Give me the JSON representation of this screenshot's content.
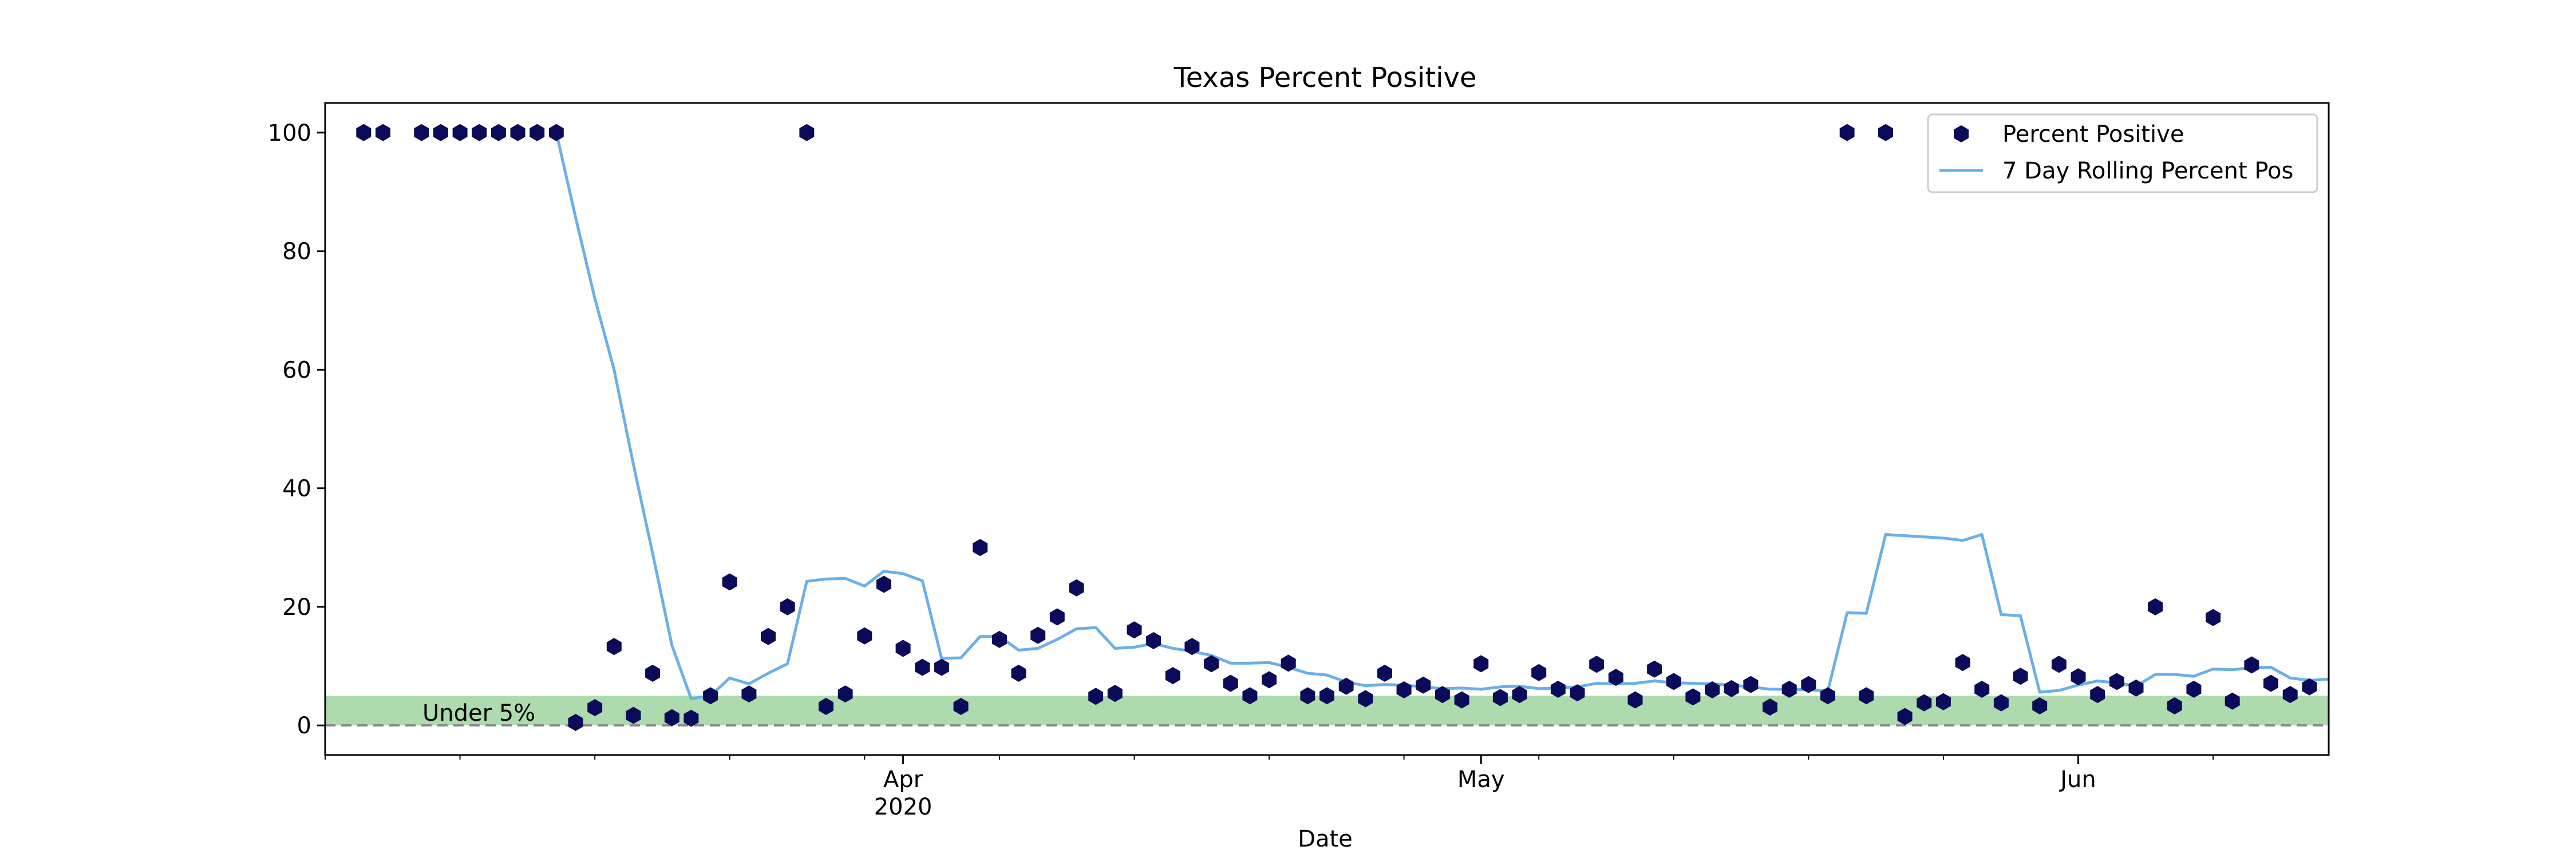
{
  "chart_data": {
    "type": "scatter",
    "title": "Texas Percent Positive",
    "xlabel": "Date",
    "ylabel": "",
    "ylim": [
      -5,
      105
    ],
    "xlim": [
      "2020-03-02",
      "2020-06-14"
    ],
    "x_ticks": [
      {
        "date": "2020-04-01",
        "label": "Apr",
        "sublabel": "2020"
      },
      {
        "date": "2020-05-01",
        "label": "May",
        "sublabel": ""
      },
      {
        "date": "2020-06-01",
        "label": "Jun",
        "sublabel": ""
      }
    ],
    "x_minor_ticks": [
      "2020-03-02",
      "2020-03-09",
      "2020-03-16",
      "2020-03-23",
      "2020-03-30",
      "2020-04-06",
      "2020-04-13",
      "2020-04-20",
      "2020-04-27",
      "2020-05-04",
      "2020-05-11",
      "2020-05-18",
      "2020-05-25",
      "2020-06-01",
      "2020-06-08"
    ],
    "y_ticks": [
      0,
      20,
      40,
      60,
      80,
      100
    ],
    "grid": false,
    "legend_position": "top-right",
    "band": {
      "from": 0,
      "to": 5,
      "label": "Under 5%",
      "color": "#5cb85c"
    },
    "reference_line": {
      "y": 0,
      "style": "dashed",
      "color": "#888888"
    },
    "series": [
      {
        "name": "Percent Positive",
        "kind": "scatter",
        "marker": "hexagon",
        "color": "#0b0b5a",
        "points": [
          [
            "2020-03-04",
            100
          ],
          [
            "2020-03-05",
            100
          ],
          [
            "2020-03-07",
            100
          ],
          [
            "2020-03-08",
            100
          ],
          [
            "2020-03-09",
            100
          ],
          [
            "2020-03-10",
            100
          ],
          [
            "2020-03-11",
            100
          ],
          [
            "2020-03-12",
            100
          ],
          [
            "2020-03-13",
            100
          ],
          [
            "2020-03-14",
            100
          ],
          [
            "2020-03-15",
            0.5
          ],
          [
            "2020-03-16",
            3
          ],
          [
            "2020-03-17",
            13.3
          ],
          [
            "2020-03-18",
            1.7
          ],
          [
            "2020-03-19",
            8.8
          ],
          [
            "2020-03-20",
            1.3
          ],
          [
            "2020-03-21",
            1.2
          ],
          [
            "2020-03-22",
            5
          ],
          [
            "2020-03-23",
            24.2
          ],
          [
            "2020-03-24",
            5.3
          ],
          [
            "2020-03-25",
            15
          ],
          [
            "2020-03-26",
            20
          ],
          [
            "2020-03-27",
            100
          ],
          [
            "2020-03-28",
            3.2
          ],
          [
            "2020-03-29",
            5.3
          ],
          [
            "2020-03-30",
            15.1
          ],
          [
            "2020-03-31",
            23.8
          ],
          [
            "2020-04-01",
            13
          ],
          [
            "2020-04-02",
            9.8
          ],
          [
            "2020-04-03",
            9.8
          ],
          [
            "2020-04-04",
            3.2
          ],
          [
            "2020-04-05",
            30
          ],
          [
            "2020-04-06",
            14.5
          ],
          [
            "2020-04-07",
            8.8
          ],
          [
            "2020-04-08",
            15.2
          ],
          [
            "2020-04-09",
            18.3
          ],
          [
            "2020-04-10",
            23.2
          ],
          [
            "2020-04-11",
            4.9
          ],
          [
            "2020-04-12",
            5.4
          ],
          [
            "2020-04-13",
            16.1
          ],
          [
            "2020-04-14",
            14.3
          ],
          [
            "2020-04-15",
            8.4
          ],
          [
            "2020-04-16",
            13.3
          ],
          [
            "2020-04-17",
            10.4
          ],
          [
            "2020-04-18",
            7.1
          ],
          [
            "2020-04-19",
            5
          ],
          [
            "2020-04-20",
            7.7
          ],
          [
            "2020-04-21",
            10.5
          ],
          [
            "2020-04-22",
            5
          ],
          [
            "2020-04-23",
            5
          ],
          [
            "2020-04-24",
            6.6
          ],
          [
            "2020-04-25",
            4.5
          ],
          [
            "2020-04-26",
            8.8
          ],
          [
            "2020-04-27",
            6
          ],
          [
            "2020-04-28",
            6.8
          ],
          [
            "2020-04-29",
            5.2
          ],
          [
            "2020-04-30",
            4.3
          ],
          [
            "2020-05-01",
            10.4
          ],
          [
            "2020-05-02",
            4.7
          ],
          [
            "2020-05-03",
            5.2
          ],
          [
            "2020-05-04",
            8.9
          ],
          [
            "2020-05-05",
            6.1
          ],
          [
            "2020-05-06",
            5.5
          ],
          [
            "2020-05-07",
            10.3
          ],
          [
            "2020-05-08",
            8.1
          ],
          [
            "2020-05-09",
            4.3
          ],
          [
            "2020-05-10",
            9.5
          ],
          [
            "2020-05-11",
            7.4
          ],
          [
            "2020-05-12",
            4.8
          ],
          [
            "2020-05-13",
            6
          ],
          [
            "2020-05-14",
            6.2
          ],
          [
            "2020-05-15",
            6.9
          ],
          [
            "2020-05-16",
            3.1
          ],
          [
            "2020-05-17",
            6.1
          ],
          [
            "2020-05-18",
            6.9
          ],
          [
            "2020-05-19",
            5
          ],
          [
            "2020-05-20",
            100
          ],
          [
            "2020-05-21",
            5
          ],
          [
            "2020-05-22",
            100
          ],
          [
            "2020-05-23",
            1.5
          ],
          [
            "2020-05-24",
            3.8
          ],
          [
            "2020-05-25",
            4
          ],
          [
            "2020-05-26",
            10.6
          ],
          [
            "2020-05-27",
            6.1
          ],
          [
            "2020-05-28",
            3.8
          ],
          [
            "2020-05-29",
            8.3
          ],
          [
            "2020-05-30",
            3.3
          ],
          [
            "2020-05-31",
            10.3
          ],
          [
            "2020-06-01",
            8.2
          ],
          [
            "2020-06-02",
            5.2
          ],
          [
            "2020-06-03",
            7.4
          ],
          [
            "2020-06-04",
            6.3
          ],
          [
            "2020-06-05",
            20
          ],
          [
            "2020-06-06",
            3.3
          ],
          [
            "2020-06-07",
            6.1
          ],
          [
            "2020-06-08",
            18.2
          ],
          [
            "2020-06-09",
            4.1
          ],
          [
            "2020-06-10",
            10.2
          ],
          [
            "2020-06-11",
            7.1
          ],
          [
            "2020-06-12",
            5.2
          ],
          [
            "2020-06-13",
            6.5
          ]
        ]
      },
      {
        "name": "7 Day Rolling Percent Pos",
        "kind": "line",
        "color": "#6aafea",
        "points": [
          [
            "2020-03-14",
            100
          ],
          [
            "2020-03-15",
            85.7
          ],
          [
            "2020-03-16",
            72
          ],
          [
            "2020-03-17",
            60
          ],
          [
            "2020-03-18",
            44
          ],
          [
            "2020-03-19",
            29
          ],
          [
            "2020-03-20",
            13.5
          ],
          [
            "2020-03-21",
            4.5
          ],
          [
            "2020-03-22",
            5
          ],
          [
            "2020-03-23",
            8
          ],
          [
            "2020-03-24",
            7
          ],
          [
            "2020-03-25",
            8.8
          ],
          [
            "2020-03-26",
            10.4
          ],
          [
            "2020-03-27",
            24.3
          ],
          [
            "2020-03-28",
            24.7
          ],
          [
            "2020-03-29",
            24.8
          ],
          [
            "2020-03-30",
            23.5
          ],
          [
            "2020-03-31",
            26
          ],
          [
            "2020-04-01",
            25.6
          ],
          [
            "2020-04-02",
            24.4
          ],
          [
            "2020-04-03",
            11.3
          ],
          [
            "2020-04-04",
            11.4
          ],
          [
            "2020-04-05",
            15
          ],
          [
            "2020-04-06",
            15
          ],
          [
            "2020-04-07",
            12.7
          ],
          [
            "2020-04-08",
            13
          ],
          [
            "2020-04-09",
            14.5
          ],
          [
            "2020-04-10",
            16.3
          ],
          [
            "2020-04-11",
            16.5
          ],
          [
            "2020-04-12",
            13
          ],
          [
            "2020-04-13",
            13.2
          ],
          [
            "2020-04-14",
            13.8
          ],
          [
            "2020-04-15",
            13
          ],
          [
            "2020-04-16",
            12.5
          ],
          [
            "2020-04-17",
            11.8
          ],
          [
            "2020-04-18",
            10.5
          ],
          [
            "2020-04-19",
            10.5
          ],
          [
            "2020-04-20",
            10.6
          ],
          [
            "2020-04-21",
            9.8
          ],
          [
            "2020-04-22",
            8.8
          ],
          [
            "2020-04-23",
            8.5
          ],
          [
            "2020-04-24",
            7.3
          ],
          [
            "2020-04-25",
            6.7
          ],
          [
            "2020-04-26",
            6.9
          ],
          [
            "2020-04-27",
            6.8
          ],
          [
            "2020-04-28",
            6.5
          ],
          [
            "2020-04-29",
            6.2
          ],
          [
            "2020-04-30",
            6.3
          ],
          [
            "2020-05-01",
            6.1
          ],
          [
            "2020-05-02",
            6.5
          ],
          [
            "2020-05-03",
            6.6
          ],
          [
            "2020-05-04",
            6.2
          ],
          [
            "2020-05-05",
            6.3
          ],
          [
            "2020-05-06",
            6.5
          ],
          [
            "2020-05-07",
            7.1
          ],
          [
            "2020-05-08",
            7
          ],
          [
            "2020-05-09",
            7.1
          ],
          [
            "2020-05-10",
            7.5
          ],
          [
            "2020-05-11",
            7.2
          ],
          [
            "2020-05-12",
            7.1
          ],
          [
            "2020-05-13",
            7
          ],
          [
            "2020-05-14",
            6.8
          ],
          [
            "2020-05-15",
            6.5
          ],
          [
            "2020-05-16",
            6.1
          ],
          [
            "2020-05-17",
            6.1
          ],
          [
            "2020-05-18",
            6
          ],
          [
            "2020-05-19",
            5.8
          ],
          [
            "2020-05-20",
            19
          ],
          [
            "2020-05-21",
            18.9
          ],
          [
            "2020-05-22",
            32.2
          ],
          [
            "2020-05-23",
            32
          ],
          [
            "2020-05-24",
            31.8
          ],
          [
            "2020-05-25",
            31.6
          ],
          [
            "2020-05-26",
            31.2
          ],
          [
            "2020-05-27",
            32.2
          ],
          [
            "2020-05-28",
            18.7
          ],
          [
            "2020-05-29",
            18.5
          ],
          [
            "2020-05-30",
            5.6
          ],
          [
            "2020-05-31",
            5.9
          ],
          [
            "2020-06-01",
            6.8
          ],
          [
            "2020-06-02",
            7.5
          ],
          [
            "2020-06-03",
            7.2
          ],
          [
            "2020-06-04",
            6.6
          ],
          [
            "2020-06-05",
            8.6
          ],
          [
            "2020-06-06",
            8.6
          ],
          [
            "2020-06-07",
            8.3
          ],
          [
            "2020-06-08",
            9.5
          ],
          [
            "2020-06-09",
            9.4
          ],
          [
            "2020-06-10",
            9.7
          ],
          [
            "2020-06-11",
            9.8
          ],
          [
            "2020-06-12",
            8
          ],
          [
            "2020-06-13",
            7.6
          ],
          [
            "2020-06-14",
            7.8
          ]
        ]
      }
    ]
  }
}
